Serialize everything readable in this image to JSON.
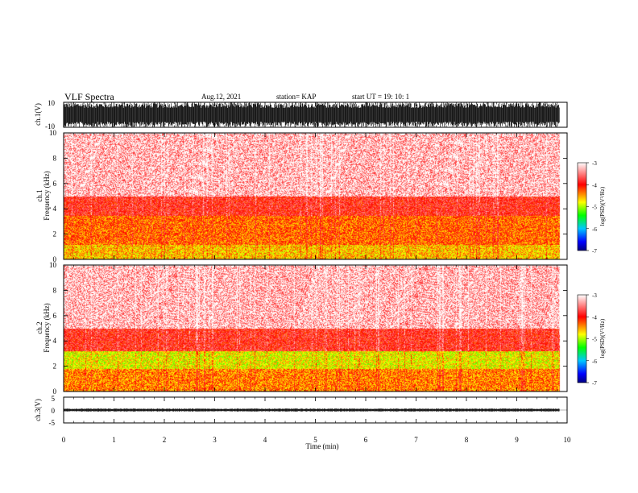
{
  "header": {
    "title": "VLF Spectra",
    "date": "Aug.12, 2021",
    "station": "station= KAP",
    "start": "start  UT =   19: 10: 1"
  },
  "chart_data": [
    {
      "type": "line",
      "name": "ch1-waveform",
      "ylabel": "ch.1(V)",
      "ylim": [
        -10,
        10
      ],
      "yticks": [
        "10",
        "-10"
      ],
      "description_values": "amplitude saturating between -10 and 10 V across full record",
      "xlim": [
        0,
        10
      ]
    },
    {
      "type": "heatmap",
      "name": "ch1-spectrogram",
      "ylabel": "ch.1",
      "ylabel2": "Frequency  (kHz)",
      "ylim": [
        0,
        10
      ],
      "yticks": [
        "0",
        "2",
        "4",
        "6",
        "8",
        "10"
      ],
      "xlim": [
        0,
        10
      ],
      "colorbar": {
        "label": "log(PSD)(V²/Hz)",
        "ticks": [
          "-3",
          "-4",
          "-5",
          "-6",
          "-7"
        ],
        "range": [
          -7,
          -3
        ]
      },
      "bands": [
        {
          "f_low": 0,
          "f_high": 1.2,
          "level": -4.6
        },
        {
          "f_low": 1.2,
          "f_high": 3.5,
          "level": -4.3
        },
        {
          "f_low": 3.5,
          "f_high": 5.0,
          "level": -3.9
        },
        {
          "f_low": 5.0,
          "f_high": 10,
          "level": -3.4
        }
      ]
    },
    {
      "type": "heatmap",
      "name": "ch2-spectrogram",
      "ylabel": "ch.2",
      "ylabel2": "Frequency  (kHz)",
      "ylim": [
        0,
        10
      ],
      "yticks": [
        "0",
        "2",
        "4",
        "6",
        "8",
        "10"
      ],
      "xlim": [
        0,
        10
      ],
      "colorbar": {
        "label": "log(PSD)(V²/Hz)",
        "ticks": [
          "-3",
          "-4",
          "-5",
          "-6",
          "-7"
        ],
        "range": [
          -7,
          -3
        ]
      },
      "bands": [
        {
          "f_low": 0,
          "f_high": 1.8,
          "level": -4.4
        },
        {
          "f_low": 1.8,
          "f_high": 3.2,
          "level": -4.8
        },
        {
          "f_low": 3.2,
          "f_high": 5.0,
          "level": -3.9
        },
        {
          "f_low": 5.0,
          "f_high": 10,
          "level": -3.4
        }
      ]
    },
    {
      "type": "line",
      "name": "ch3-waveform",
      "ylabel": "ch.3(V)",
      "ylim": [
        -5,
        5
      ],
      "yticks": [
        "5",
        "0",
        "-5"
      ],
      "baseline": 0,
      "amplitude": 0.6,
      "xlim": [
        0,
        10
      ],
      "xlabel": "Time  (min)",
      "xticks": [
        "0",
        "1",
        "2",
        "3",
        "4",
        "5",
        "6",
        "7",
        "8",
        "9",
        "10"
      ]
    }
  ],
  "colors": {
    "colormap": [
      "#ffffff",
      "#ff0000",
      "#ffff00",
      "#00ff00",
      "#00c8ff",
      "#0000ff",
      "#000080"
    ],
    "axis": "#000000"
  }
}
